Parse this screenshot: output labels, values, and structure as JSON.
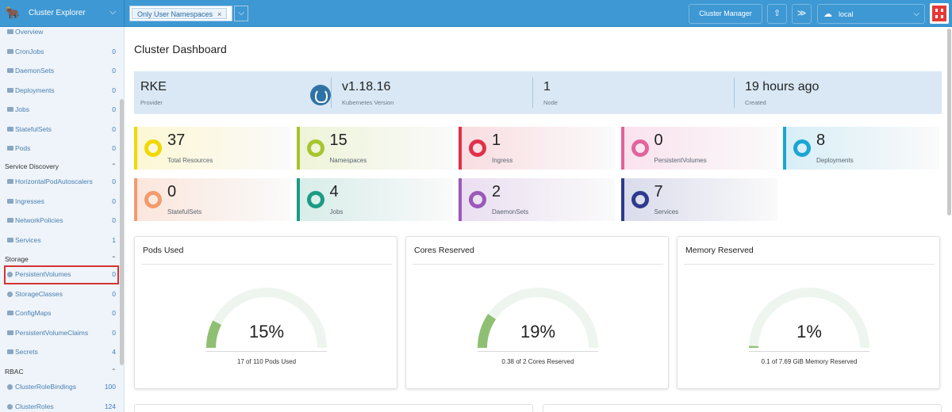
{
  "header": {
    "app_title": "Cluster Explorer",
    "namespace_chip": "Only User Namespaces",
    "namespace_chip_remove": "×",
    "cluster_manager_label": "Cluster Manager",
    "context_label": "local"
  },
  "sidebar": {
    "workload_items": [
      {
        "label": "Overview",
        "count": ""
      },
      {
        "label": "CronJobs",
        "count": "0"
      },
      {
        "label": "DaemonSets",
        "count": "0"
      },
      {
        "label": "Deployments",
        "count": "0"
      },
      {
        "label": "Jobs",
        "count": "0"
      },
      {
        "label": "StatefulSets",
        "count": "0"
      },
      {
        "label": "Pods",
        "count": "0"
      }
    ],
    "service_discovery": {
      "title": "Service Discovery",
      "items": [
        {
          "label": "HorizontalPodAutoscalers",
          "count": "0"
        },
        {
          "label": "Ingresses",
          "count": "0"
        },
        {
          "label": "NetworkPolicies",
          "count": "0"
        },
        {
          "label": "Services",
          "count": "1"
        }
      ]
    },
    "storage": {
      "title": "Storage",
      "items": [
        {
          "label": "PersistentVolumes",
          "count": "0"
        },
        {
          "label": "StorageClasses",
          "count": "0"
        },
        {
          "label": "ConfigMaps",
          "count": "0"
        },
        {
          "label": "PersistentVolumeClaims",
          "count": "0"
        },
        {
          "label": "Secrets",
          "count": "4"
        }
      ]
    },
    "rbac": {
      "title": "RBAC",
      "items": [
        {
          "label": "ClusterRoleBindings",
          "count": "100"
        },
        {
          "label": "ClusterRoles",
          "count": "124"
        }
      ]
    }
  },
  "main": {
    "title": "Cluster Dashboard",
    "provider": {
      "value": "RKE",
      "label": "Provider"
    },
    "k8s_version": {
      "value": "v1.18.16",
      "label": "Kubernetes Version"
    },
    "nodes": {
      "value": "1",
      "label": "Node"
    },
    "created": {
      "value": "19 hours ago",
      "label": "Created"
    },
    "tiles": [
      {
        "value": "37",
        "label": "Total Resources",
        "color": "#f0d800",
        "bg": "#fdf7d4"
      },
      {
        "value": "15",
        "label": "Namespaces",
        "color": "#a6c52f",
        "bg": "#eef4d8"
      },
      {
        "value": "1",
        "label": "Ingress",
        "color": "#e0314b",
        "bg": "#f9dde1"
      },
      {
        "value": "0",
        "label": "PersistentVolumes",
        "color": "#e0649a",
        "bg": "#f9e2ee"
      },
      {
        "value": "8",
        "label": "Deployments",
        "color": "#1aa6d3",
        "bg": "#d8eef7"
      },
      {
        "value": "0",
        "label": "StatefulSets",
        "color": "#f29b6d",
        "bg": "#fbe6dc"
      },
      {
        "value": "4",
        "label": "Jobs",
        "color": "#1b9b83",
        "bg": "#d8ede9"
      },
      {
        "value": "2",
        "label": "DaemonSets",
        "color": "#9a5ab8",
        "bg": "#eadff1"
      },
      {
        "value": "7",
        "label": "Services",
        "color": "#2d3b8e",
        "bg": "#dadcec"
      }
    ],
    "gauges": [
      {
        "title": "Pods Used",
        "percent": "15%",
        "fraction": 0.15,
        "subtitle": "17 of 110 Pods Used"
      },
      {
        "title": "Cores Reserved",
        "percent": "19%",
        "fraction": 0.19,
        "subtitle": "0.38 of 2 Cores Reserved"
      },
      {
        "title": "Memory Reserved",
        "percent": "1%",
        "fraction": 0.01,
        "subtitle": "0.1 of 7.69 GiB Memory Reserved"
      }
    ],
    "gauge_colors": {
      "track": "#eef5ee",
      "fill": "#8fbf73"
    }
  }
}
